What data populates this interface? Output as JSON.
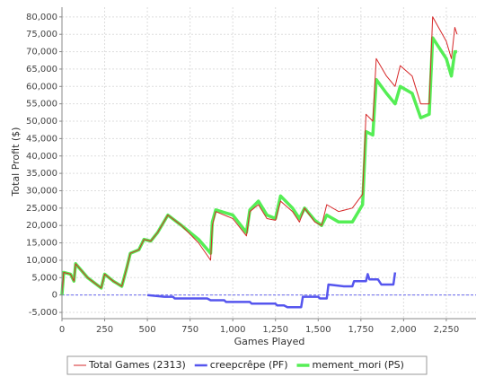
{
  "chart_data": {
    "type": "line",
    "x_label": "Games Played",
    "y_label": "Total Profit ($)",
    "xlim": [
      0,
      2424
    ],
    "ylim": [
      -6800,
      82800
    ],
    "xticks": [
      0,
      250,
      500,
      750,
      {
        "value": 1000,
        "label": "1,000"
      },
      {
        "value": 1250,
        "label": "1,250"
      },
      {
        "value": 1500,
        "label": "1,500"
      },
      {
        "value": 1750,
        "label": "1,750"
      },
      {
        "value": 2000,
        "label": "2,000"
      },
      {
        "value": 2250,
        "label": "2,250"
      }
    ],
    "yticks": [
      {
        "value": -5000,
        "label": "-5,000"
      },
      0,
      {
        "value": 5000,
        "label": "5,000"
      },
      {
        "value": 10000,
        "label": "10,000"
      },
      {
        "value": 15000,
        "label": "15,000"
      },
      {
        "value": 20000,
        "label": "20,000"
      },
      {
        "value": 25000,
        "label": "25,000"
      },
      {
        "value": 30000,
        "label": "30,000"
      },
      {
        "value": 35000,
        "label": "35,000"
      },
      {
        "value": 40000,
        "label": "40,000"
      },
      {
        "value": 45000,
        "label": "45,000"
      },
      {
        "value": 50000,
        "label": "50,000"
      },
      {
        "value": 55000,
        "label": "55,000"
      },
      {
        "value": 60000,
        "label": "60,000"
      },
      {
        "value": 65000,
        "label": "65,000"
      },
      {
        "value": 70000,
        "label": "70,000"
      },
      {
        "value": 75000,
        "label": "75,000"
      },
      {
        "value": 80000,
        "label": "80,000"
      }
    ],
    "grid": true,
    "series": [
      {
        "name": "Total Games (2313)",
        "color": "#d62728",
        "line_width": 1,
        "x": [
          0,
          10,
          50,
          70,
          80,
          150,
          230,
          250,
          300,
          350,
          380,
          400,
          450,
          480,
          520,
          560,
          620,
          700,
          800,
          870,
          880,
          900,
          1000,
          1080,
          1100,
          1150,
          1200,
          1250,
          1280,
          1350,
          1390,
          1420,
          1480,
          1520,
          1550,
          1620,
          1700,
          1760,
          1780,
          1820,
          1840,
          1900,
          1950,
          1980,
          2050,
          2100,
          2150,
          2170,
          2250,
          2280,
          2300,
          2313
        ],
        "values": [
          0,
          6500,
          6000,
          4000,
          9000,
          5000,
          2000,
          6000,
          4000,
          2500,
          8000,
          12000,
          13000,
          16000,
          15500,
          18000,
          23000,
          20000,
          15000,
          10000,
          20000,
          24000,
          22000,
          17000,
          24000,
          26000,
          22000,
          21500,
          27000,
          24000,
          21000,
          25000,
          21000,
          20000,
          26000,
          24000,
          25000,
          29000,
          52000,
          50000,
          68000,
          63000,
          60000,
          66000,
          63000,
          55000,
          55000,
          80000,
          73000,
          68000,
          77000,
          75000
        ]
      },
      {
        "name": "creepcrêpe (PF)",
        "color": "#5555ee",
        "line_width": 2.5,
        "x": [
          500,
          600,
          650,
          660,
          850,
          870,
          950,
          960,
          1100,
          1110,
          1250,
          1260,
          1300,
          1320,
          1400,
          1410,
          1500,
          1510,
          1550,
          1560,
          1650,
          1700,
          1710,
          1780,
          1790,
          1800,
          1850,
          1870,
          1940,
          1950
        ],
        "values": [
          0,
          -500,
          -500,
          -1000,
          -1000,
          -1500,
          -1500,
          -2000,
          -2000,
          -2500,
          -2500,
          -3000,
          -3000,
          -3500,
          -3500,
          -500,
          -500,
          -1000,
          -1000,
          3000,
          2500,
          2500,
          4000,
          4000,
          6000,
          4500,
          4500,
          3000,
          3000,
          6500
        ]
      },
      {
        "name": "mement_mori (PS)",
        "color": "#55ee55",
        "line_width": 3.5,
        "x": [
          0,
          10,
          50,
          70,
          80,
          150,
          230,
          250,
          300,
          350,
          380,
          400,
          450,
          480,
          520,
          560,
          620,
          700,
          800,
          870,
          880,
          900,
          1000,
          1080,
          1100,
          1150,
          1200,
          1250,
          1280,
          1350,
          1390,
          1420,
          1480,
          1520,
          1550,
          1620,
          1700,
          1760,
          1780,
          1820,
          1840,
          1900,
          1950,
          1980,
          2050,
          2100,
          2150,
          2170,
          2250,
          2280,
          2300,
          2313
        ],
        "values": [
          0,
          6500,
          6000,
          4000,
          9000,
          5000,
          2000,
          6000,
          4000,
          2500,
          8000,
          12000,
          13000,
          16000,
          15500,
          18000,
          23000,
          20000,
          16000,
          12000,
          21000,
          24500,
          23000,
          18000,
          24500,
          27000,
          23000,
          22000,
          28500,
          25000,
          22000,
          25000,
          21500,
          20000,
          23000,
          21000,
          21000,
          26000,
          47000,
          46000,
          62000,
          58000,
          55000,
          60000,
          58000,
          51000,
          52000,
          74000,
          68000,
          63000,
          70000,
          70000
        ]
      }
    ]
  }
}
